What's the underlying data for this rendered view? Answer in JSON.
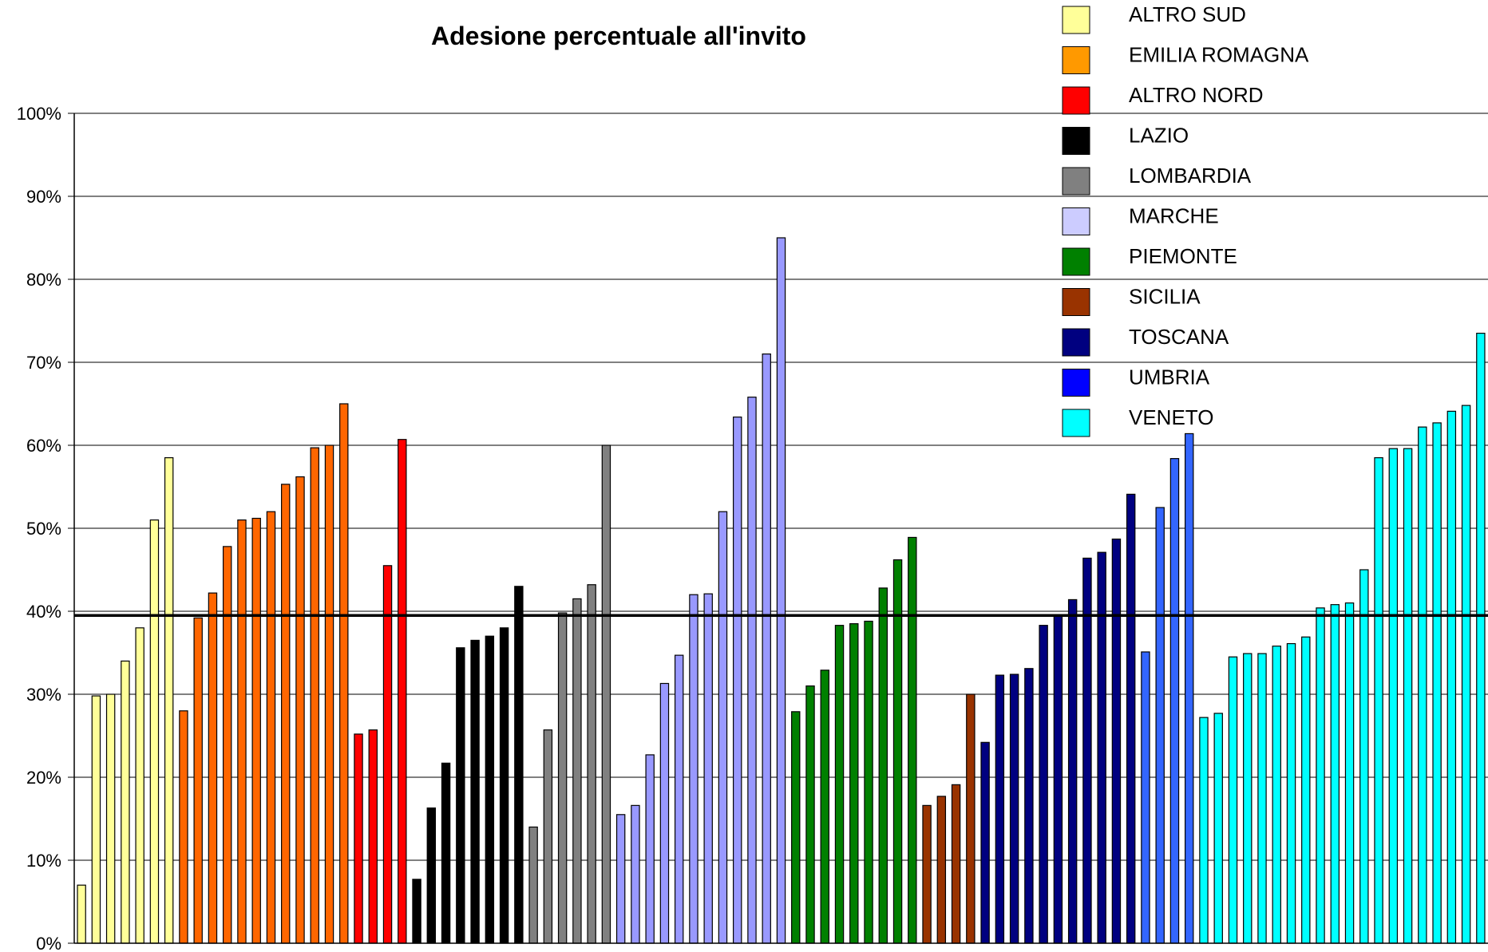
{
  "chart_data": {
    "type": "bar",
    "title": "Adesione percentuale all'invito",
    "xlabel": "",
    "ylabel": "",
    "ylim": [
      0,
      100
    ],
    "yticks": [
      0,
      10,
      20,
      30,
      40,
      50,
      60,
      70,
      80,
      90,
      100
    ],
    "ytick_labels": [
      "0%",
      "10%",
      "20%",
      "30%",
      "40%",
      "50%",
      "60%",
      "70%",
      "80%",
      "90%",
      "100%"
    ],
    "grid": true,
    "legend_position": "top-right",
    "reference_line": 39.5,
    "series": [
      {
        "name": "ALTRO SUD",
        "color": "#FFFF99",
        "values": [
          7,
          29.8,
          30,
          34,
          38,
          51,
          58.5
        ]
      },
      {
        "name": "EMILIA ROMAGNA",
        "color": "#FF9900",
        "values": [
          28,
          39.2,
          42.2,
          47.8,
          51,
          51.2,
          52,
          55.3,
          56.2,
          59.7,
          60,
          65
        ]
      },
      {
        "name": "ALTRO NORD",
        "color": "#FF0000",
        "values": [
          25.2,
          25.7,
          45.5,
          60.7
        ]
      },
      {
        "name": "LAZIO",
        "color": "#000000",
        "values": [
          7.7,
          16.3,
          21.7,
          35.6,
          36.5,
          37,
          38,
          43
        ]
      },
      {
        "name": "LOMBARDIA",
        "color": "#808080",
        "values": [
          14,
          25.7,
          39.8,
          41.5,
          43.2,
          60
        ]
      },
      {
        "name": "MARCHE",
        "color": "#CCCCFF",
        "values": [
          15.5,
          16.6,
          22.7,
          31.3,
          34.7,
          42,
          42.1,
          52,
          63.4,
          65.8,
          71,
          85
        ]
      },
      {
        "name": "PIEMONTE",
        "color": "#008000",
        "values": [
          27.9,
          31,
          32.9,
          38.3,
          38.5,
          38.8,
          42.8,
          46.2,
          48.9
        ]
      },
      {
        "name": "SICILIA",
        "color": "#993300",
        "values": [
          16.6,
          17.7,
          19.1,
          30
        ]
      },
      {
        "name": "TOSCANA",
        "color": "#000080",
        "values": [
          24.2,
          32.3,
          32.4,
          33.1,
          38.3,
          39.5,
          41.4,
          46.4,
          47.1,
          48.7,
          54.1
        ]
      },
      {
        "name": "UMBRIA",
        "color": "#0000FF",
        "values": [
          35.1,
          52.5,
          58.4,
          61.4
        ]
      },
      {
        "name": "VENETO",
        "color": "#00FFFF",
        "values": [
          27.2,
          27.7,
          34.5,
          34.9,
          34.9,
          35.8,
          36.1,
          36.9,
          40.4,
          40.8,
          41,
          45,
          58.5,
          59.6,
          59.6,
          62.2,
          62.7,
          64.1,
          64.8,
          73.5
        ]
      }
    ]
  },
  "bar_colors": {
    "ALTRO SUD": "#FFFF99",
    "EMILIA ROMAGNA": "#FF6600",
    "ALTRO NORD": "#FF0000",
    "LAZIO": "#000000",
    "LOMBARDIA": "#808080",
    "MARCHE": "#9999FF",
    "PIEMONTE": "#008000",
    "SICILIA": "#993300",
    "TOSCANA": "#000080",
    "UMBRIA": "#3366FF",
    "VENETO": "#00FFFF"
  }
}
